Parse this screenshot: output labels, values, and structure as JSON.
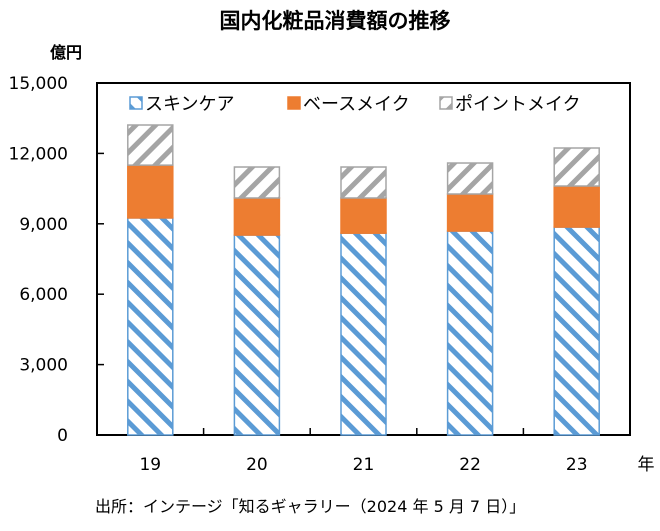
{
  "chart_data": {
    "type": "bar",
    "stacked": true,
    "title": "国内化粧品消費額の推移",
    "ylabel": "億円",
    "xlabel": "年",
    "ylim": [
      0,
      15000
    ],
    "yticks": [
      0,
      3000,
      6000,
      9000,
      12000,
      15000
    ],
    "ytick_labels": [
      "0",
      "3,000",
      "6,000",
      "9,000",
      "12,000",
      "15,000"
    ],
    "categories": [
      "19",
      "20",
      "21",
      "22",
      "23"
    ],
    "series": [
      {
        "name": "スキンケア",
        "color": "#5b9bd5",
        "pattern": "diagonal-stripes",
        "values": [
          9250,
          8520,
          8600,
          8690,
          8860
        ]
      },
      {
        "name": "ベースメイク",
        "color": "#ed7d31",
        "pattern": "solid",
        "values": [
          2250,
          1580,
          1500,
          1580,
          1750
        ]
      },
      {
        "name": "ポイントメイク",
        "color": "#a5a5a5",
        "pattern": "diagonal-stripes",
        "values": [
          1710,
          1320,
          1320,
          1320,
          1620
        ]
      }
    ],
    "legend_position": "top",
    "grid": false,
    "source": "出所：インテージ「知るギャラリー（2024 年 5 月 7 日）」"
  }
}
